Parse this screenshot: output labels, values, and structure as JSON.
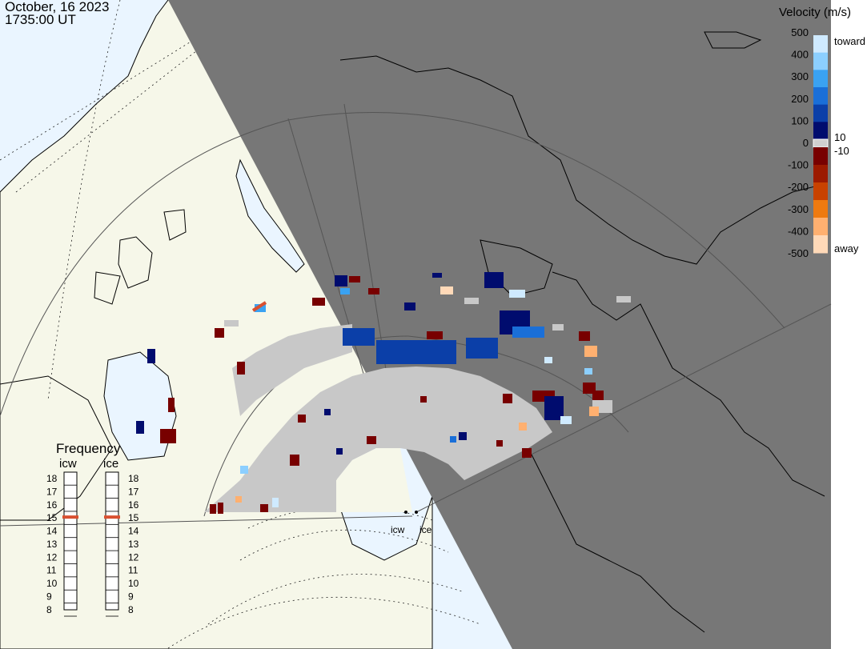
{
  "header": {
    "date": "October, 16 2023",
    "time": "1735:00 UT"
  },
  "colorbar": {
    "title": "Velocity (m/s)",
    "ticks": [
      "500",
      "400",
      "300",
      "200",
      "100",
      "0",
      "-100",
      "-200",
      "-300",
      "-400",
      "-500"
    ],
    "upper_small_label": "10",
    "lower_small_label": "-10",
    "toward_label": "toward",
    "away_label": "away",
    "colors": [
      "#cfeaff",
      "#8ccfff",
      "#3aa2f2",
      "#1a6fd8",
      "#0b3fa8",
      "#000c6e",
      "#780000",
      "#9c1a00",
      "#c84200",
      "#ee7a10",
      "#ffb070",
      "#ffd9b8"
    ]
  },
  "frequency": {
    "title": "Frequency",
    "radars": [
      {
        "code": "icw",
        "selected": "15"
      },
      {
        "code": "ice",
        "selected": "15"
      }
    ],
    "levels": [
      "18",
      "17",
      "16",
      "15",
      "14",
      "13",
      "12",
      "11",
      "10",
      "9",
      "8"
    ]
  },
  "stations": [
    {
      "code": "icw"
    },
    {
      "code": "ice"
    }
  ],
  "map_colors": {
    "ocean": "#eaf5ff",
    "land": "#f6f7e9",
    "night": "#777777",
    "no_scatter": "#c8c8c8",
    "accent_marker": "#d95030"
  }
}
